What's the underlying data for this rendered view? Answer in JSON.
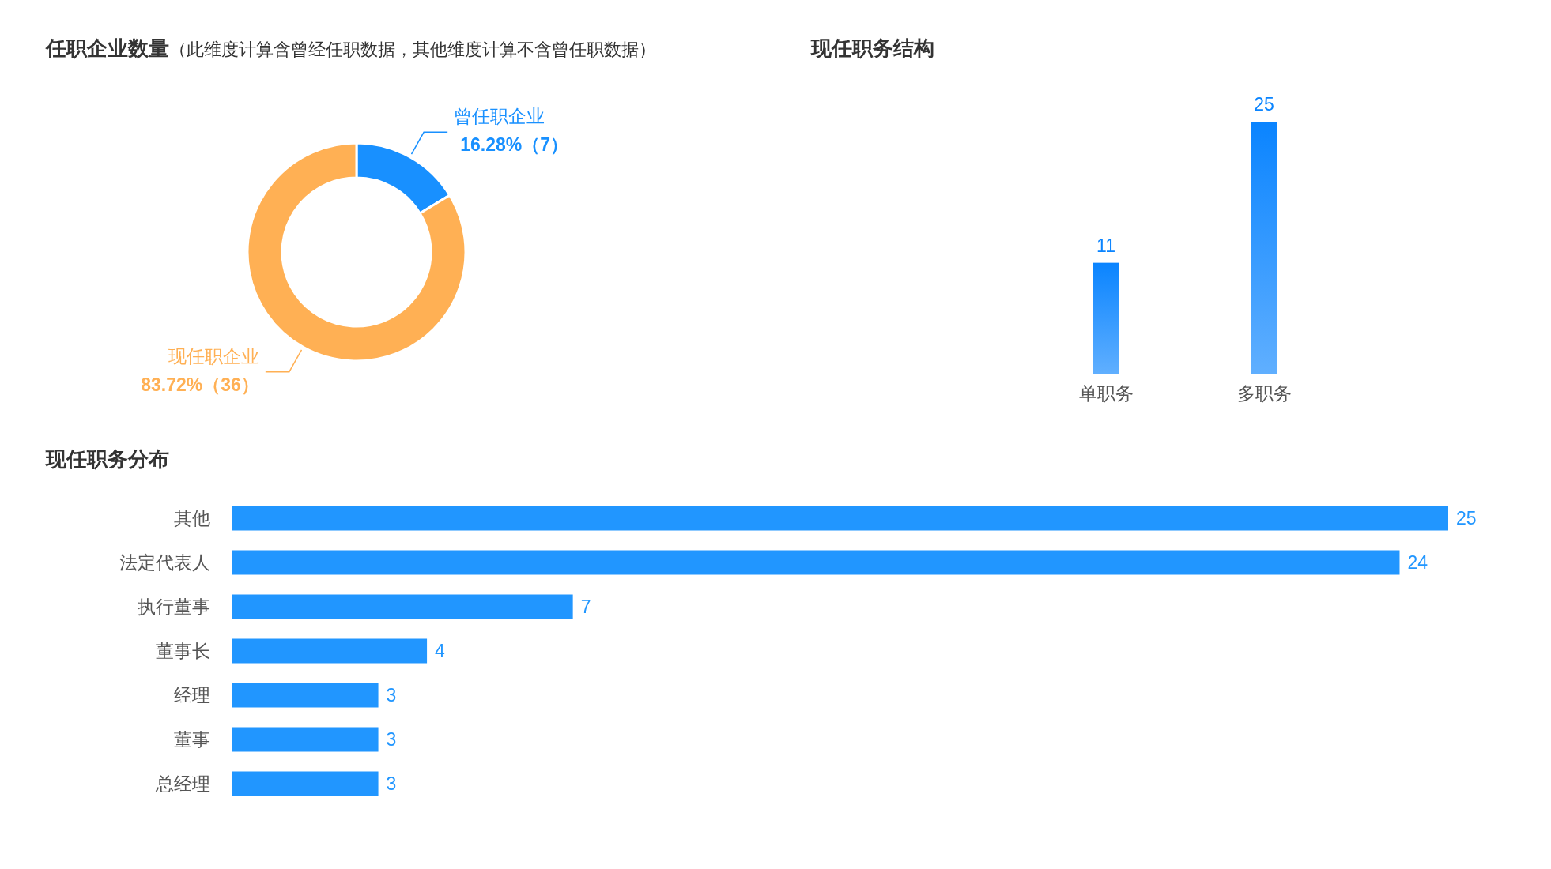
{
  "chart_data": [
    {
      "type": "donut",
      "title": "任职企业数量",
      "subtitle": "（此维度计算含曾经任职数据，其他维度计算不含曾任职数据）",
      "categories": [
        "曾任职企业",
        "现任职企业"
      ],
      "values": [
        7,
        36
      ],
      "value_labels": [
        "16.28%（7）",
        "83.72%（36）"
      ],
      "colors": [
        "#1890ff",
        "#ffb054"
      ]
    },
    {
      "type": "bar",
      "title": "现任职务结构",
      "categories": [
        "单职务",
        "多职务"
      ],
      "values": [
        11,
        25
      ],
      "color": "#0a84ff",
      "data_labels": true
    },
    {
      "type": "bar",
      "orientation": "horizontal",
      "title": "现任职务分布",
      "categories": [
        "其他",
        "法定代表人",
        "执行董事",
        "董事长",
        "经理",
        "董事",
        "总经理"
      ],
      "values": [
        25,
        24,
        7,
        4,
        3,
        3,
        3
      ],
      "color": "#2196ff",
      "data_labels": true
    }
  ]
}
